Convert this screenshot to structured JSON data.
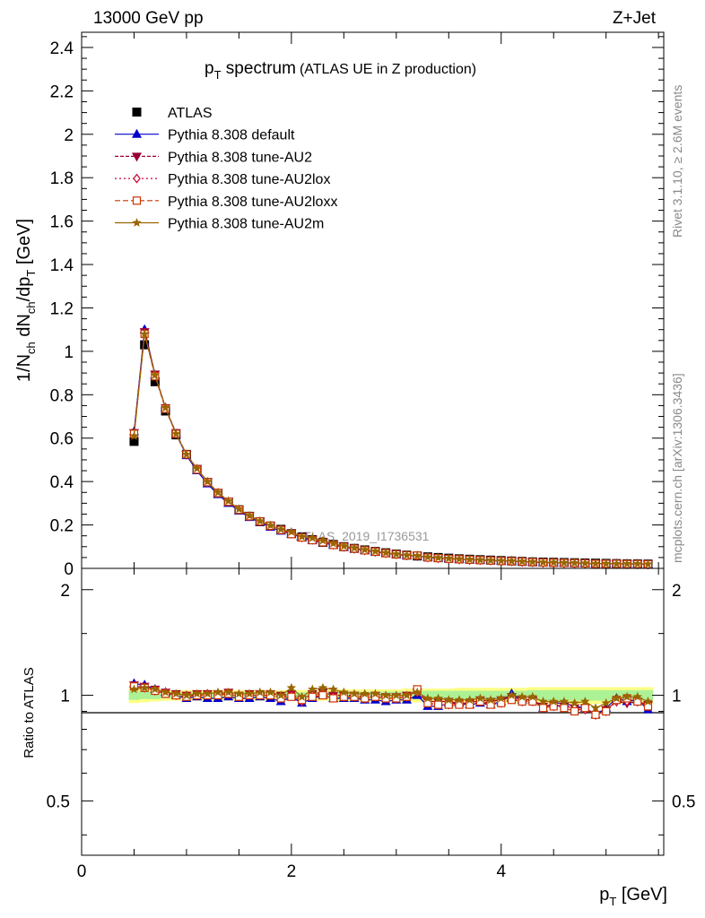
{
  "header": {
    "left": "13000 GeV pp",
    "right": "Z+Jet",
    "side_top": "Rivet 3.1.10, ≥ 2.6M events",
    "side_bottom": "mcplots.cern.ch [arXiv:1306.3436]"
  },
  "colors": {
    "ATLAS": "#000000",
    "default": "#0000cc",
    "AU2": "#990033",
    "AU2lox": "#cc0033",
    "AU2loxx": "#cc3300",
    "AU2m": "#996600",
    "band_green": "#99ee99",
    "band_yellow": "#ffff66"
  },
  "chart_data": [
    {
      "type": "line",
      "title": "p_T spectrum",
      "title_main": "p",
      "title_sub": "T",
      "title_rest": " spectrum",
      "title_note": "(ATLAS UE in Z production)",
      "watermark": "ATLAS_2019_I1736531",
      "ylabel": "1/N_ch dN_ch/dp_T [GeV]",
      "xlim": [
        0,
        5.55
      ],
      "ylim": [
        0,
        2.47
      ],
      "yticks": [
        "0",
        "0.2",
        "0.4",
        "0.6",
        "0.8",
        "1",
        "1.2",
        "1.4",
        "1.6",
        "1.8",
        "2",
        "2.2",
        "2.4"
      ],
      "x": [
        0.5,
        0.6,
        0.7,
        0.8,
        0.9,
        1.0,
        1.1,
        1.2,
        1.3,
        1.4,
        1.5,
        1.6,
        1.7,
        1.8,
        1.9,
        2.0,
        2.1,
        2.2,
        2.3,
        2.4,
        2.5,
        2.6,
        2.7,
        2.8,
        2.9,
        3.0,
        3.1,
        3.2,
        3.3,
        3.4,
        3.5,
        3.6,
        3.7,
        3.8,
        3.9,
        4.0,
        4.1,
        4.2,
        4.3,
        4.4,
        4.5,
        4.6,
        4.7,
        4.8,
        4.9,
        5.0,
        5.1,
        5.2,
        5.3,
        5.4
      ],
      "series": [
        {
          "name": "ATLAS",
          "marker": "square",
          "values": [
            0.585,
            1.03,
            0.86,
            0.725,
            0.615,
            0.525,
            0.455,
            0.395,
            0.345,
            0.305,
            0.27,
            0.24,
            0.215,
            0.195,
            0.18,
            0.16,
            0.145,
            0.132,
            0.12,
            0.11,
            0.1,
            0.092,
            0.085,
            0.078,
            0.072,
            0.066,
            0.061,
            0.057,
            0.053,
            0.05,
            0.047,
            0.044,
            0.042,
            0.04,
            0.038,
            0.036,
            0.034,
            0.032,
            0.03,
            0.029,
            0.028,
            0.027,
            0.026,
            0.025,
            0.024,
            0.023,
            0.022,
            0.021,
            0.021,
            0.02
          ]
        },
        {
          "name": "Pythia 8.308 default",
          "marker": "triangle",
          "values": [
            0.63,
            1.1,
            0.89,
            0.74,
            0.62,
            0.52,
            0.45,
            0.39,
            0.34,
            0.3,
            0.265,
            0.235,
            0.212,
            0.19,
            0.172,
            0.158,
            0.142,
            0.128,
            0.118,
            0.107,
            0.098,
            0.09,
            0.082,
            0.076,
            0.069,
            0.064,
            0.059,
            0.057,
            0.05,
            0.047,
            0.045,
            0.042,
            0.04,
            0.038,
            0.036,
            0.034,
            0.034,
            0.031,
            0.029,
            0.027,
            0.026,
            0.025,
            0.024,
            0.023,
            0.021,
            0.021,
            0.021,
            0.02,
            0.02,
            0.019
          ]
        },
        {
          "name": "Pythia 8.308 tune-AU2",
          "marker": "triangle-down",
          "values": [
            0.625,
            1.09,
            0.895,
            0.74,
            0.625,
            0.525,
            0.46,
            0.4,
            0.35,
            0.31,
            0.272,
            0.242,
            0.218,
            0.198,
            0.18,
            0.162,
            0.145,
            0.133,
            0.122,
            0.11,
            0.1,
            0.092,
            0.084,
            0.078,
            0.071,
            0.066,
            0.061,
            0.058,
            0.051,
            0.048,
            0.045,
            0.042,
            0.04,
            0.039,
            0.037,
            0.035,
            0.034,
            0.031,
            0.029,
            0.027,
            0.026,
            0.025,
            0.024,
            0.023,
            0.021,
            0.021,
            0.021,
            0.02,
            0.02,
            0.019
          ]
        },
        {
          "name": "Pythia 8.308 tune-AU2lox",
          "marker": "diamond",
          "values": [
            0.62,
            1.085,
            0.89,
            0.74,
            0.62,
            0.525,
            0.458,
            0.398,
            0.348,
            0.308,
            0.27,
            0.24,
            0.216,
            0.196,
            0.178,
            0.16,
            0.143,
            0.132,
            0.121,
            0.109,
            0.099,
            0.091,
            0.083,
            0.077,
            0.07,
            0.065,
            0.06,
            0.058,
            0.05,
            0.047,
            0.044,
            0.042,
            0.04,
            0.038,
            0.036,
            0.034,
            0.033,
            0.031,
            0.029,
            0.027,
            0.026,
            0.025,
            0.024,
            0.023,
            0.021,
            0.021,
            0.021,
            0.02,
            0.02,
            0.019
          ]
        },
        {
          "name": "Pythia 8.308 tune-AU2loxx",
          "marker": "open-square",
          "values": [
            0.62,
            1.08,
            0.885,
            0.735,
            0.62,
            0.525,
            0.455,
            0.397,
            0.347,
            0.307,
            0.27,
            0.24,
            0.216,
            0.196,
            0.177,
            0.158,
            0.142,
            0.13,
            0.12,
            0.108,
            0.099,
            0.091,
            0.083,
            0.077,
            0.07,
            0.065,
            0.06,
            0.059,
            0.05,
            0.047,
            0.044,
            0.042,
            0.04,
            0.038,
            0.036,
            0.034,
            0.033,
            0.031,
            0.029,
            0.027,
            0.026,
            0.025,
            0.024,
            0.023,
            0.021,
            0.021,
            0.021,
            0.02,
            0.02,
            0.019
          ]
        },
        {
          "name": "Pythia 8.308 tune-AU2m",
          "marker": "star",
          "values": [
            0.61,
            1.08,
            0.89,
            0.74,
            0.62,
            0.525,
            0.46,
            0.4,
            0.35,
            0.31,
            0.273,
            0.243,
            0.218,
            0.198,
            0.18,
            0.168,
            0.146,
            0.14,
            0.128,
            0.115,
            0.103,
            0.094,
            0.086,
            0.079,
            0.072,
            0.066,
            0.061,
            0.058,
            0.052,
            0.049,
            0.046,
            0.043,
            0.041,
            0.039,
            0.037,
            0.035,
            0.034,
            0.032,
            0.03,
            0.028,
            0.027,
            0.026,
            0.025,
            0.024,
            0.022,
            0.022,
            0.021,
            0.021,
            0.021,
            0.02
          ]
        }
      ]
    },
    {
      "type": "line",
      "ylabel": "Ratio to ATLAS",
      "xlabel": "p_T [GeV]",
      "xlabel_main": "p",
      "xlabel_sub": "T",
      "xlabel_rest": " [GeV]",
      "xlim": [
        0,
        5.55
      ],
      "ylim": [
        0.35,
        2.3
      ],
      "xticks": [
        "0",
        "2",
        "4"
      ],
      "yticks": [
        "0.5",
        "1",
        "2"
      ],
      "x": [
        0.5,
        0.6,
        0.7,
        0.8,
        0.9,
        1.0,
        1.1,
        1.2,
        1.3,
        1.4,
        1.5,
        1.6,
        1.7,
        1.8,
        1.9,
        2.0,
        2.1,
        2.2,
        2.3,
        2.4,
        2.5,
        2.6,
        2.7,
        2.8,
        2.9,
        3.0,
        3.1,
        3.2,
        3.3,
        3.4,
        3.5,
        3.6,
        3.7,
        3.8,
        3.9,
        4.0,
        4.1,
        4.2,
        4.3,
        4.4,
        4.5,
        4.6,
        4.7,
        4.8,
        4.9,
        5.0,
        5.1,
        5.2,
        5.3,
        5.4
      ],
      "bands": {
        "green": [
          0.03,
          0.025,
          0.025,
          0.02,
          0.02,
          0.02,
          0.02,
          0.02,
          0.02,
          0.02,
          0.02,
          0.02,
          0.02,
          0.02,
          0.02,
          0.02,
          0.02,
          0.02,
          0.02,
          0.02,
          0.025,
          0.025,
          0.025,
          0.025,
          0.025,
          0.025,
          0.025,
          0.025,
          0.03,
          0.03,
          0.03,
          0.03,
          0.03,
          0.03,
          0.03,
          0.03,
          0.03,
          0.03,
          0.035,
          0.035,
          0.035,
          0.035,
          0.035,
          0.035,
          0.035,
          0.035,
          0.035,
          0.035,
          0.035,
          0.035
        ],
        "yellow": [
          0.05,
          0.045,
          0.04,
          0.035,
          0.035,
          0.035,
          0.035,
          0.035,
          0.035,
          0.035,
          0.035,
          0.035,
          0.035,
          0.035,
          0.035,
          0.035,
          0.035,
          0.035,
          0.035,
          0.04,
          0.04,
          0.04,
          0.04,
          0.04,
          0.04,
          0.04,
          0.045,
          0.045,
          0.045,
          0.045,
          0.045,
          0.05,
          0.05,
          0.05,
          0.05,
          0.05,
          0.05,
          0.05,
          0.055,
          0.055,
          0.055,
          0.055,
          0.055,
          0.055,
          0.055,
          0.055,
          0.055,
          0.055,
          0.055,
          0.055
        ]
      },
      "series": [
        {
          "name": "Pythia 8.308 default",
          "marker": "triangle",
          "values": [
            1.08,
            1.07,
            1.04,
            1.02,
            1.0,
            0.98,
            0.99,
            0.98,
            0.98,
            0.99,
            0.98,
            0.98,
            0.99,
            0.98,
            0.96,
            0.99,
            0.95,
            0.98,
            1.0,
            0.98,
            0.98,
            0.98,
            0.97,
            0.97,
            0.96,
            0.97,
            0.97,
            1.0,
            0.93,
            0.93,
            0.95,
            0.95,
            0.94,
            0.95,
            0.94,
            0.96,
            1.01,
            0.97,
            0.97,
            0.92,
            0.95,
            0.95,
            0.93,
            0.92,
            0.88,
            0.92,
            0.98,
            0.96,
            0.97,
            0.91
          ]
        },
        {
          "name": "Pythia 8.308 tune-AU2",
          "marker": "triangle-down",
          "values": [
            1.07,
            1.06,
            1.04,
            1.02,
            1.01,
            1.0,
            1.01,
            1.01,
            1.01,
            1.02,
            1.0,
            1.01,
            1.01,
            1.01,
            1.0,
            1.01,
            0.97,
            1.01,
            1.02,
            1.0,
            1.0,
            1.0,
            0.99,
            1.0,
            0.99,
            0.99,
            1.0,
            1.02,
            0.96,
            0.96,
            0.96,
            0.95,
            0.95,
            0.97,
            0.96,
            0.97,
            0.99,
            0.97,
            0.97,
            0.93,
            0.94,
            0.93,
            0.92,
            0.92,
            0.88,
            0.91,
            0.96,
            0.95,
            0.96,
            0.94
          ]
        },
        {
          "name": "Pythia 8.308 tune-AU2lox",
          "marker": "diamond",
          "values": [
            1.06,
            1.05,
            1.03,
            1.02,
            1.0,
            1.0,
            1.0,
            1.01,
            1.01,
            1.01,
            0.99,
            1.0,
            1.0,
            1.0,
            0.99,
            1.0,
            0.96,
            1.0,
            1.01,
            0.99,
            0.99,
            0.99,
            0.98,
            0.99,
            0.98,
            0.98,
            0.99,
            1.02,
            0.95,
            0.94,
            0.94,
            0.95,
            0.95,
            0.96,
            0.95,
            0.95,
            0.98,
            0.96,
            0.96,
            0.93,
            0.93,
            0.93,
            0.92,
            0.91,
            0.88,
            0.9,
            0.96,
            0.96,
            0.96,
            0.93
          ]
        },
        {
          "name": "Pythia 8.308 tune-AU2loxx",
          "marker": "open-square",
          "values": [
            1.06,
            1.05,
            1.03,
            1.01,
            1.0,
            0.99,
            1.0,
            1.0,
            1.0,
            1.01,
            0.99,
            1.0,
            1.0,
            1.0,
            0.98,
            0.99,
            0.97,
            0.99,
            1.0,
            0.98,
            0.99,
            0.99,
            0.98,
            0.99,
            0.98,
            0.98,
            0.99,
            1.04,
            0.95,
            0.94,
            0.94,
            0.94,
            0.94,
            0.96,
            0.94,
            0.95,
            0.97,
            0.96,
            0.96,
            0.92,
            0.93,
            0.92,
            0.9,
            0.92,
            0.88,
            0.9,
            0.97,
            0.98,
            0.96,
            0.93
          ]
        },
        {
          "name": "Pythia 8.308 tune-AU2m",
          "marker": "star",
          "values": [
            1.04,
            1.05,
            1.04,
            1.02,
            1.01,
            1.0,
            1.01,
            1.01,
            1.02,
            1.02,
            1.01,
            1.01,
            1.02,
            1.02,
            1.0,
            1.05,
            0.99,
            1.04,
            1.05,
            1.04,
            1.02,
            1.01,
            1.01,
            1.01,
            1.0,
            1.0,
            1.0,
            1.02,
            0.98,
            0.98,
            0.97,
            0.97,
            0.97,
            0.98,
            0.97,
            0.98,
            1.0,
            0.99,
            0.99,
            0.96,
            0.96,
            0.96,
            0.95,
            0.96,
            0.92,
            0.95,
            0.98,
            0.99,
            0.99,
            0.96
          ]
        }
      ]
    }
  ]
}
